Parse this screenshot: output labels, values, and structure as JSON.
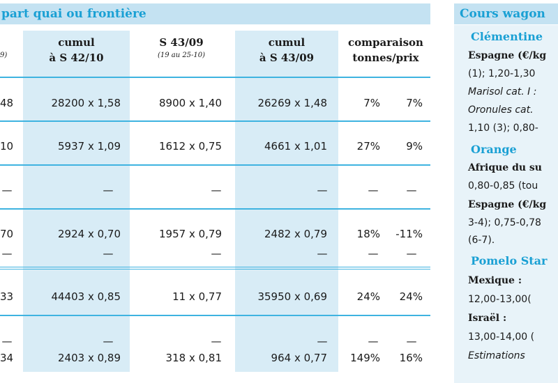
{
  "table": {
    "title": "part quai ou frontière",
    "headers": {
      "col0_sub": "9)",
      "cumul_42": [
        "cumul",
        "à S 42/10"
      ],
      "s43": [
        "S 43/09",
        "(19 au 25-10)"
      ],
      "cumul_43": [
        "cumul",
        "à S 43/09"
      ],
      "comparaison": [
        "comparaison",
        "tonnes/prix"
      ]
    },
    "rows": [
      {
        "c0": "48",
        "c1": "28200 x 1,58",
        "c2": "8900 x 1,40",
        "c3": "26269 x 1,48",
        "t": "7%",
        "p": "7%"
      },
      {
        "c0": "10",
        "c1": "5937 x 1,09",
        "c2": "1612 x 0,75",
        "c3": "4661 x 1,01",
        "t": "27%",
        "p": "9%"
      },
      {
        "c0": "—",
        "c1": "—",
        "c2": "—",
        "c3": "—",
        "t": "—",
        "p": "—"
      },
      {
        "c0": "70",
        "c1": "2924 x 0,70",
        "c2": "1957 x 0,79",
        "c3": "2482 x 0,79",
        "t": "18%",
        "p": "-11%"
      },
      {
        "c0": "—",
        "c1": "—",
        "c2": "—",
        "c3": "—",
        "t": "—",
        "p": "—"
      },
      {
        "c0": "33",
        "c1": "44403 x 0,85",
        "c2": "11 x 0,77",
        "c3": "35950 x 0,69",
        "t": "24%",
        "p": "24%"
      },
      {
        "c0": "—",
        "c1": "—",
        "c2": "—",
        "c3": "—",
        "t": "—",
        "p": "—"
      },
      {
        "c0": "34",
        "c1": "2403 x 0,89",
        "c2": "318 x 0,81",
        "c3": "964 x 0,77",
        "t": "149%",
        "p": "16%"
      }
    ]
  },
  "sidebar": {
    "title": "Cours wagon",
    "lines": [
      {
        "kind": "prod",
        "text": "Clémentine"
      },
      {
        "kind": "ctry",
        "text": "Espagne (€/kg"
      },
      {
        "kind": "txt",
        "text": "(1); 1,20-1,30"
      },
      {
        "kind": "it",
        "text": "Marisol cat. I :"
      },
      {
        "kind": "it",
        "text": "Oronules cat."
      },
      {
        "kind": "txt",
        "text": "1,10 (3); 0,80-"
      },
      {
        "kind": "prod",
        "text": "Orange"
      },
      {
        "kind": "ctry",
        "text": "Afrique du su"
      },
      {
        "kind": "txt",
        "text": "0,80-0,85 (tou"
      },
      {
        "kind": "ctry",
        "text": "Espagne (€/kg"
      },
      {
        "kind": "txt",
        "text": "3-4); 0,75-0,78"
      },
      {
        "kind": "txt",
        "text": "(6-7)."
      },
      {
        "kind": "prod",
        "text": "Pomelo Star"
      },
      {
        "kind": "ctry",
        "text": "Mexique :"
      },
      {
        "kind": "txt",
        "text": "12,00-13,00("
      },
      {
        "kind": "ctry",
        "text": "Israël :"
      },
      {
        "kind": "txt",
        "text": "13,00-14,00 ("
      },
      {
        "kind": "it",
        "text": "Estimations"
      }
    ]
  },
  "colors": {
    "accent": "#1aa0d4",
    "band": "#d8ecf6",
    "header": "#c4e2f2",
    "rule": "#3eb3e0"
  }
}
